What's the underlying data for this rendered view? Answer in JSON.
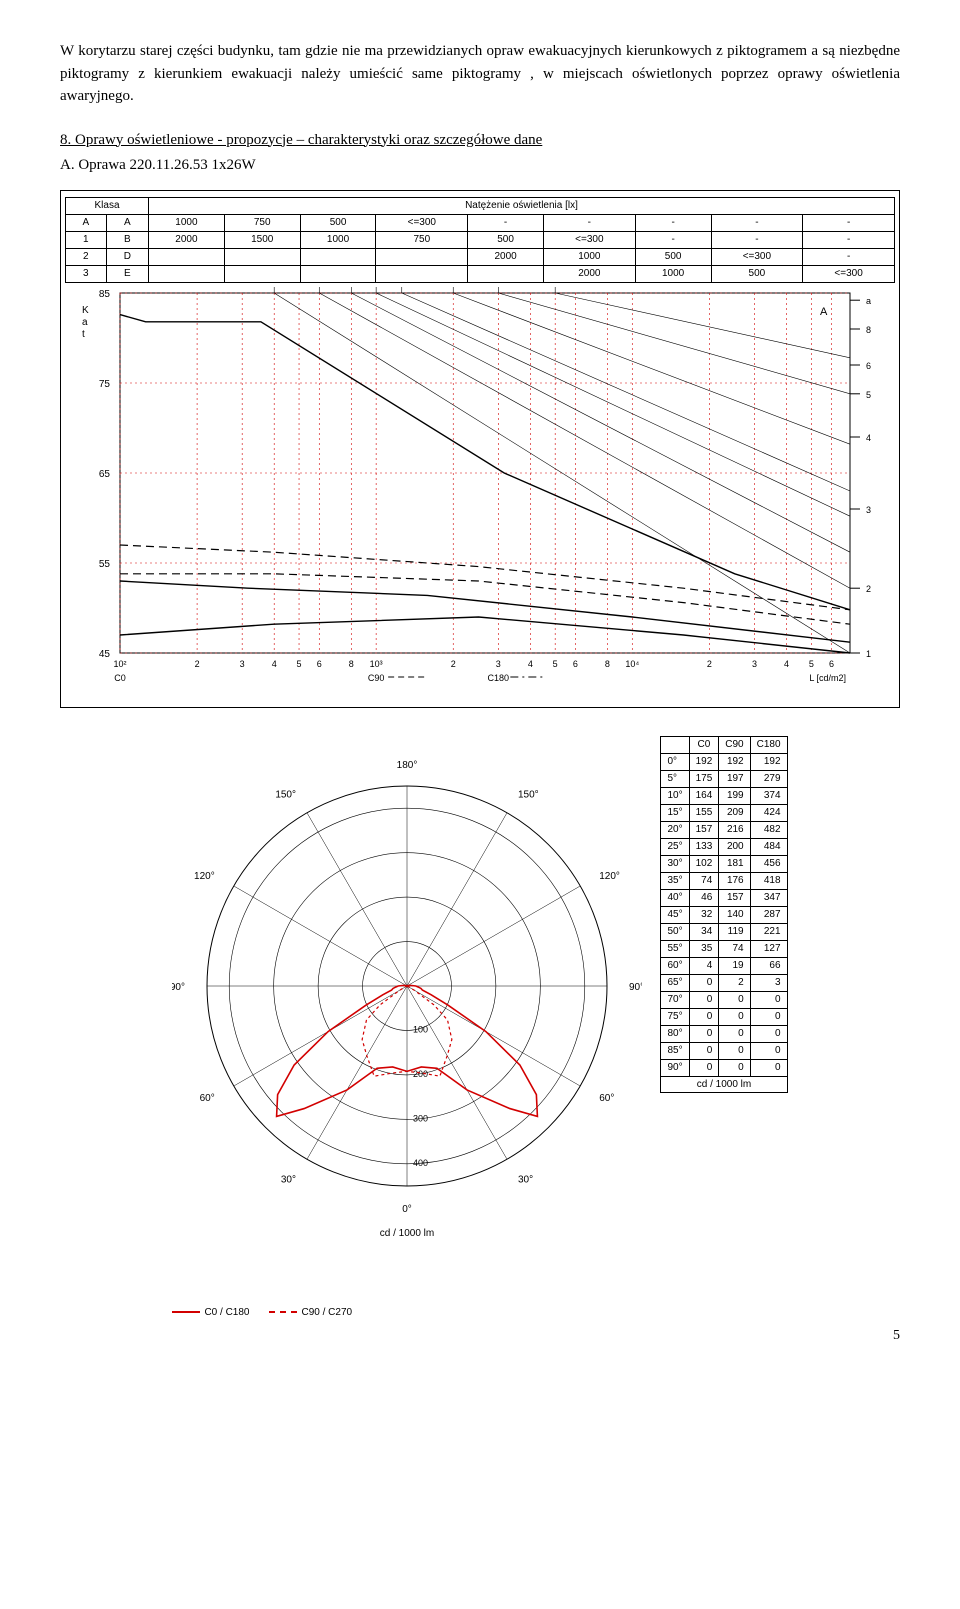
{
  "paragraph": "W korytarzu starej części budynku, tam gdzie nie ma przewidzianych opraw ewakuacyjnych kierunkowych z piktogramem a są niezbędne piktogramy z kierunkiem ewakuacji należy umieścić same piktogramy , w miejscach oświetlonych poprzez oprawy oświetlenia awaryjnego.",
  "section8": "8. Oprawy oświetleniowe - propozycje – charakterystyki oraz szczegółowe dane",
  "subA": "A. Oprawa 220.11.26.53 1x26W",
  "page_number": "5",
  "glare_table": {
    "header_left": "Klasa",
    "header_right": "Natężenie oświetlenia [lx]",
    "rows": [
      [
        "A",
        "A",
        "1000",
        "750",
        "500",
        "<=300",
        "-",
        "-",
        "-",
        "-",
        "-"
      ],
      [
        "1",
        "B",
        "2000",
        "1500",
        "1000",
        "750",
        "500",
        "<=300",
        "-",
        "-",
        "-"
      ],
      [
        "2",
        "D",
        "",
        "",
        "",
        "",
        "2000",
        "1000",
        "500",
        "<=300",
        "-"
      ],
      [
        "3",
        "E",
        "",
        "",
        "",
        "",
        "",
        "2000",
        "1000",
        "500",
        "<=300"
      ]
    ]
  },
  "glare_chart": {
    "y_label": "K\na\nt",
    "y_ticks": [
      "85",
      "75",
      "65",
      "55",
      "45"
    ],
    "y_positions": [
      0,
      1,
      2,
      3,
      4
    ],
    "x_ticks": [
      "10²",
      "2",
      "3",
      "4",
      "5",
      "6",
      "8",
      "10³",
      "2",
      "3",
      "4",
      "5",
      "6",
      "8",
      "10⁴",
      "2",
      "3",
      "4",
      "5",
      "6"
    ],
    "x_positions": [
      0,
      0.301,
      0.477,
      0.602,
      0.699,
      0.778,
      0.903,
      1.0,
      1.301,
      1.477,
      1.602,
      1.699,
      1.778,
      1.903,
      2.0,
      2.301,
      2.477,
      2.602,
      2.699,
      2.778
    ],
    "x_max": 2.85,
    "c_labels": [
      "C0",
      "C90",
      "C180"
    ],
    "c_positions": [
      0,
      1.0,
      1.477
    ],
    "x_axis_label": "L [cd/m2]",
    "right_labels_top": [
      "a",
      "8",
      "6",
      "5",
      "4",
      "3",
      "2",
      "1"
    ],
    "right_labels_top_y": [
      0.02,
      0.1,
      0.2,
      0.28,
      0.4,
      0.6,
      0.82,
      1.0
    ],
    "right_label_A": "A",
    "grid_color": "#d20000",
    "line_color": "#000000",
    "glare_lines_guide": [
      [
        [
          0.602,
          0.0
        ],
        [
          2.85,
          1.0
        ]
      ],
      [
        [
          0.778,
          0.0
        ],
        [
          2.85,
          0.82
        ]
      ],
      [
        [
          0.903,
          0.0
        ],
        [
          2.85,
          0.72
        ]
      ],
      [
        [
          1.0,
          0.0
        ],
        [
          2.85,
          0.62
        ]
      ],
      [
        [
          1.1,
          0.0
        ],
        [
          2.85,
          0.55
        ]
      ],
      [
        [
          1.301,
          0.0
        ],
        [
          2.85,
          0.42
        ]
      ],
      [
        [
          1.477,
          0.0
        ],
        [
          2.85,
          0.28
        ]
      ],
      [
        [
          1.699,
          0.0
        ],
        [
          2.85,
          0.18
        ]
      ]
    ],
    "solid_series": [
      [
        [
          0,
          0.06
        ],
        [
          0.1,
          0.08
        ],
        [
          0.55,
          0.08
        ],
        [
          1.5,
          0.5
        ],
        [
          2.4,
          0.78
        ],
        [
          2.85,
          0.88
        ]
      ],
      [
        [
          0,
          0.8
        ],
        [
          0.5,
          0.82
        ],
        [
          1.2,
          0.84
        ],
        [
          2.0,
          0.9
        ],
        [
          2.85,
          0.97
        ]
      ],
      [
        [
          0,
          0.95
        ],
        [
          0.6,
          0.92
        ],
        [
          1.4,
          0.9
        ],
        [
          2.2,
          0.95
        ],
        [
          2.85,
          1.0
        ]
      ]
    ],
    "dashed_series": [
      [
        [
          0,
          0.7
        ],
        [
          0.6,
          0.72
        ],
        [
          1.4,
          0.76
        ],
        [
          2.2,
          0.82
        ],
        [
          2.85,
          0.88
        ]
      ],
      [
        [
          0,
          0.78
        ],
        [
          0.6,
          0.78
        ],
        [
          1.4,
          0.8
        ],
        [
          2.2,
          0.86
        ],
        [
          2.85,
          0.92
        ]
      ]
    ]
  },
  "polar_chart": {
    "angle_labels_outer": [
      {
        "label": "180°",
        "deg": 0
      },
      {
        "label": "150°",
        "deg": -30
      },
      {
        "label": "150°",
        "deg": 30
      },
      {
        "label": "120°",
        "deg": -60
      },
      {
        "label": "120°",
        "deg": 60
      },
      {
        "label": "90°",
        "deg": -90
      },
      {
        "label": "90°",
        "deg": 90
      },
      {
        "label": "60°",
        "deg": -120
      },
      {
        "label": "60°",
        "deg": 120
      },
      {
        "label": "30°",
        "deg": -150
      },
      {
        "label": "30°",
        "deg": 150
      },
      {
        "label": "0°",
        "deg": 180
      }
    ],
    "rings": [
      100,
      200,
      300,
      400
    ],
    "ring_max": 450,
    "caption": "cd / 1000 lm",
    "c0_color": "#d20000",
    "c90_color": "#d20000",
    "legend": [
      {
        "label": "C0 / C180",
        "style": "solid",
        "color": "#d20000"
      },
      {
        "label": "C90 / C270",
        "style": "dashed",
        "color": "#d20000"
      }
    ],
    "c0_curve_deg_r": [
      [
        0,
        192
      ],
      [
        10,
        185
      ],
      [
        20,
        197
      ],
      [
        30,
        270
      ],
      [
        40,
        360
      ],
      [
        45,
        415
      ],
      [
        50,
        380
      ],
      [
        55,
        310
      ],
      [
        60,
        205
      ],
      [
        65,
        102
      ],
      [
        70,
        58
      ],
      [
        75,
        36
      ],
      [
        80,
        32
      ],
      [
        85,
        25
      ],
      [
        90,
        20
      ],
      [
        100,
        8
      ],
      [
        110,
        3
      ],
      [
        120,
        0
      ],
      [
        -10,
        185
      ],
      [
        -20,
        197
      ],
      [
        -30,
        270
      ],
      [
        -40,
        360
      ],
      [
        -45,
        415
      ],
      [
        -50,
        380
      ],
      [
        -55,
        310
      ],
      [
        -60,
        205
      ],
      [
        -65,
        102
      ],
      [
        -70,
        58
      ],
      [
        -75,
        36
      ],
      [
        -80,
        32
      ],
      [
        -85,
        25
      ],
      [
        -90,
        20
      ],
      [
        -100,
        8
      ],
      [
        -110,
        3
      ],
      [
        -120,
        0
      ]
    ],
    "c90_curve_deg_r": [
      [
        0,
        192
      ],
      [
        10,
        199
      ],
      [
        20,
        216
      ],
      [
        30,
        181
      ],
      [
        40,
        157
      ],
      [
        50,
        119
      ],
      [
        55,
        74
      ],
      [
        60,
        19
      ],
      [
        65,
        2
      ],
      [
        70,
        0
      ],
      [
        -10,
        199
      ],
      [
        -20,
        216
      ],
      [
        -30,
        181
      ],
      [
        -40,
        157
      ],
      [
        -50,
        119
      ],
      [
        -55,
        74
      ],
      [
        -60,
        19
      ],
      [
        -65,
        2
      ],
      [
        -70,
        0
      ]
    ]
  },
  "polar_table": {
    "columns": [
      "",
      "C0",
      "C90",
      "C180"
    ],
    "rows": [
      [
        "0°",
        "192",
        "192",
        "192"
      ],
      [
        "5°",
        "175",
        "197",
        "279"
      ],
      [
        "10°",
        "164",
        "199",
        "374"
      ],
      [
        "15°",
        "155",
        "209",
        "424"
      ],
      [
        "20°",
        "157",
        "216",
        "482"
      ],
      [
        "25°",
        "133",
        "200",
        "484"
      ],
      [
        "30°",
        "102",
        "181",
        "456"
      ],
      [
        "35°",
        "74",
        "176",
        "418"
      ],
      [
        "40°",
        "46",
        "157",
        "347"
      ],
      [
        "45°",
        "32",
        "140",
        "287"
      ],
      [
        "50°",
        "34",
        "119",
        "221"
      ],
      [
        "55°",
        "35",
        "74",
        "127"
      ],
      [
        "60°",
        "4",
        "19",
        "66"
      ],
      [
        "65°",
        "0",
        "2",
        "3"
      ],
      [
        "70°",
        "0",
        "0",
        "0"
      ],
      [
        "75°",
        "0",
        "0",
        "0"
      ],
      [
        "80°",
        "0",
        "0",
        "0"
      ],
      [
        "85°",
        "0",
        "0",
        "0"
      ],
      [
        "90°",
        "0",
        "0",
        "0"
      ]
    ],
    "caption": "cd / 1000 lm"
  }
}
